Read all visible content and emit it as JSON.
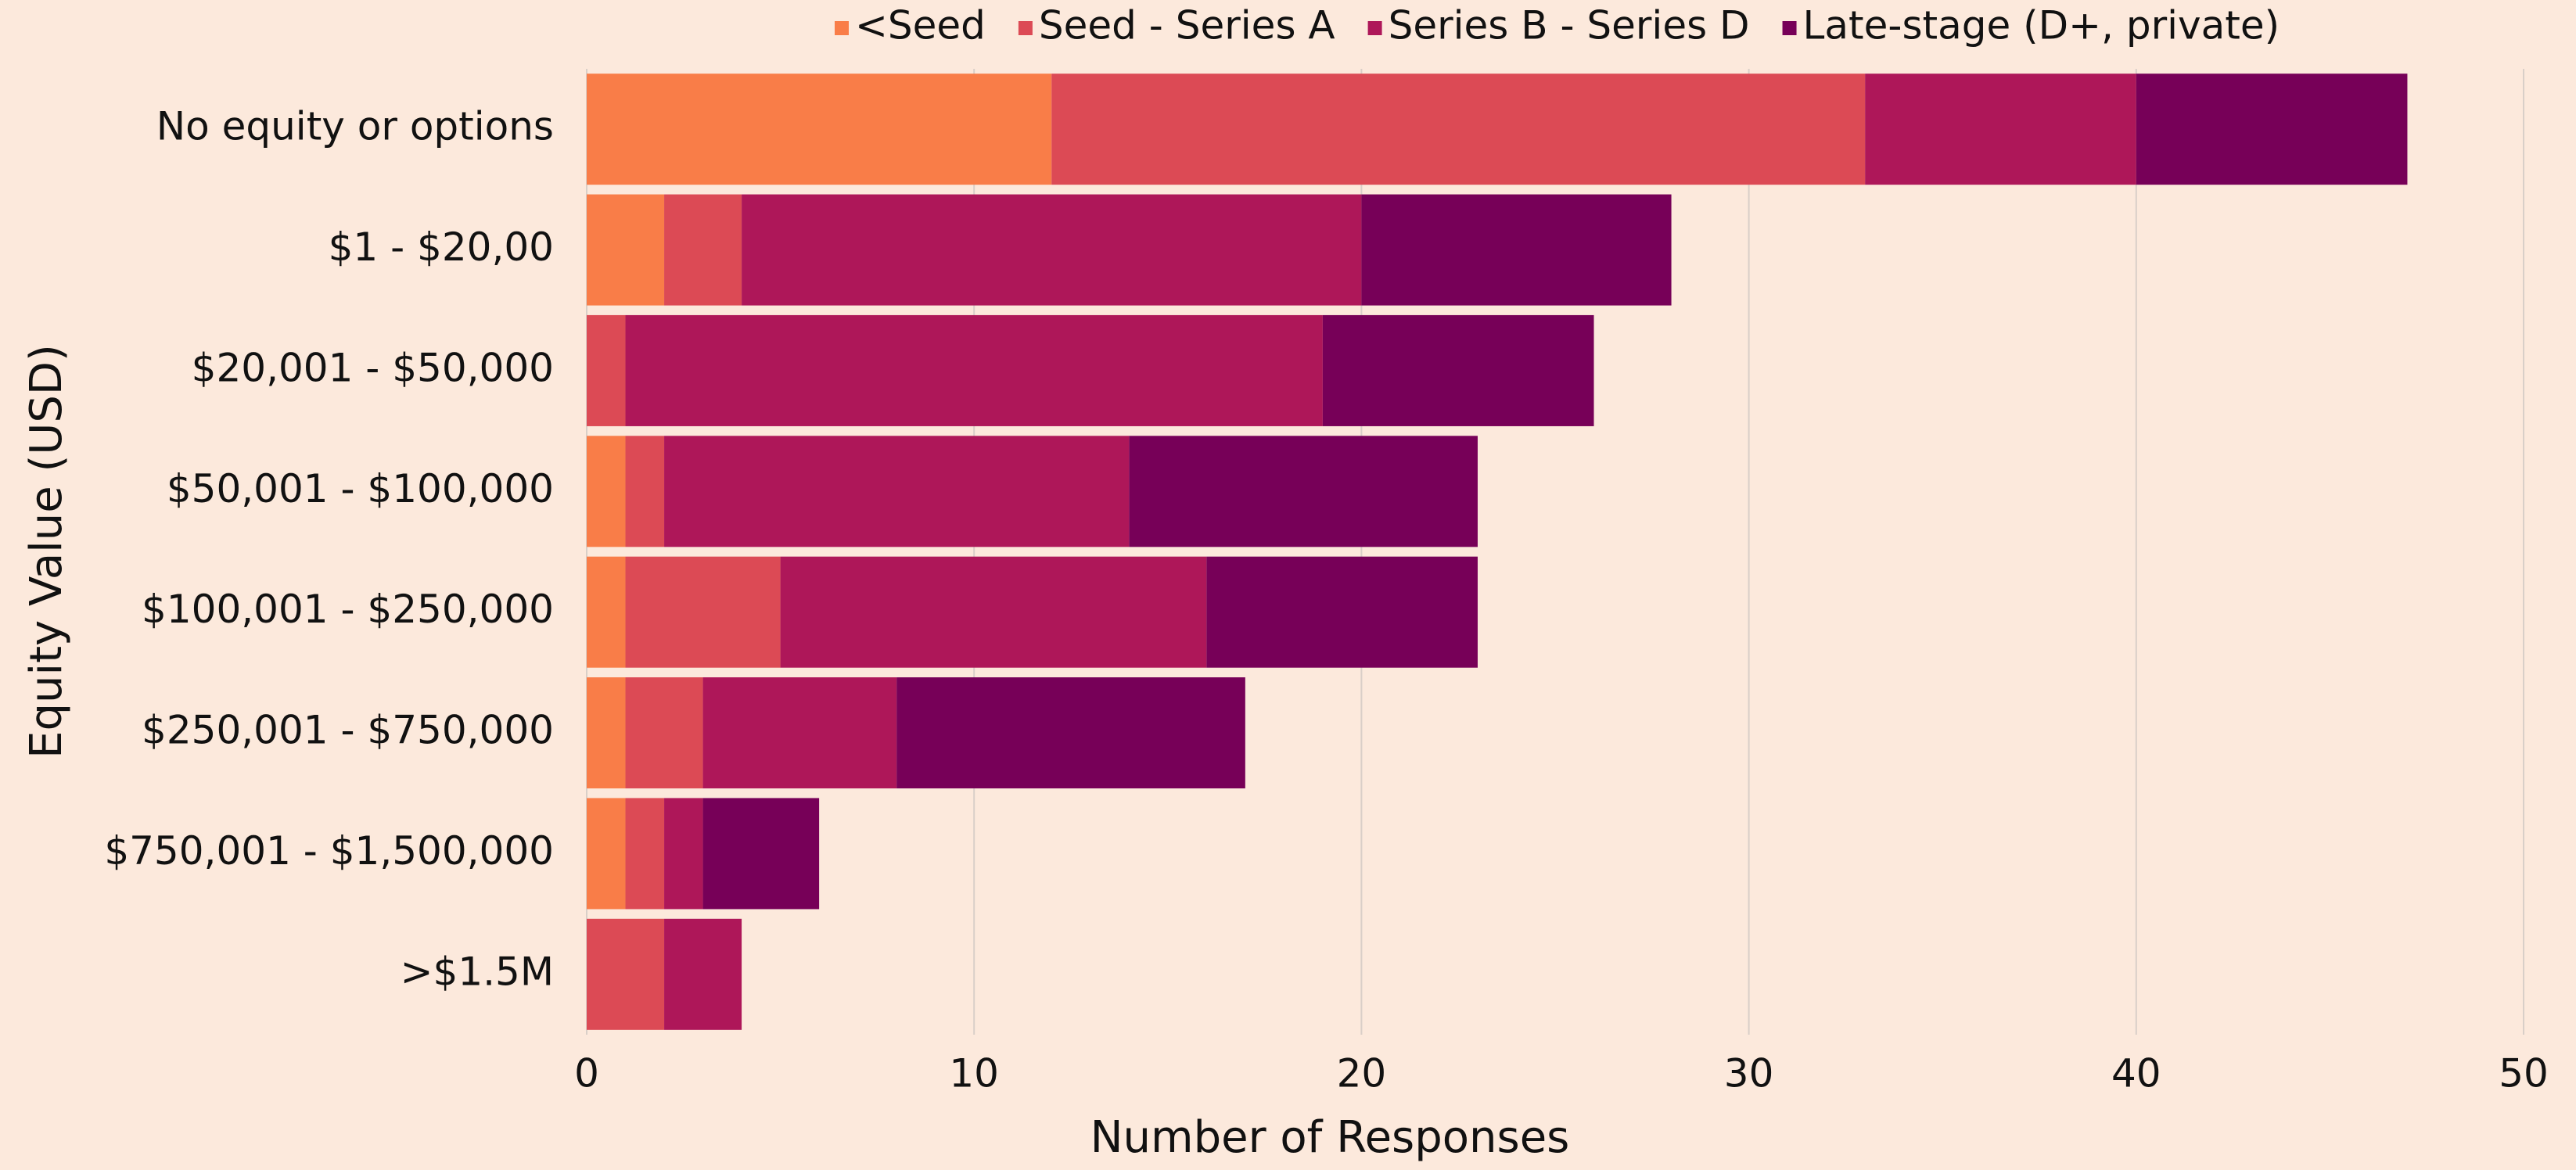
{
  "chart_data": {
    "type": "barh-stacked",
    "x_label": "Number of Responses",
    "y_label": "Equity Value (USD)",
    "categories": [
      "No equity or options",
      "$1 - $20,00",
      "$20,001 - $50,000",
      "$50,001 - $100,000",
      "$100,001 - $250,000",
      "$250,001 - $750,000",
      "$750,001 - $1,500,000",
      ">$1.5M"
    ],
    "series": [
      {
        "name": "<Seed",
        "color": "#f97d48",
        "values": [
          12,
          2,
          0,
          1,
          1,
          1,
          1,
          0
        ]
      },
      {
        "name": "Seed - Series A",
        "color": "#dc4a55",
        "values": [
          21,
          2,
          1,
          1,
          4,
          2,
          1,
          2
        ]
      },
      {
        "name": "Series B - Series D",
        "color": "#ae1759",
        "values": [
          7,
          16,
          18,
          12,
          11,
          5,
          1,
          2
        ]
      },
      {
        "name": "Late-stage (D+, private)",
        "color": "#770058",
        "values": [
          7,
          8,
          7,
          9,
          7,
          9,
          3,
          0
        ]
      }
    ],
    "xlim": [
      0,
      50
    ],
    "xticks": [
      0,
      10,
      20,
      30,
      40,
      50
    ],
    "grid": true,
    "legend": "top"
  }
}
